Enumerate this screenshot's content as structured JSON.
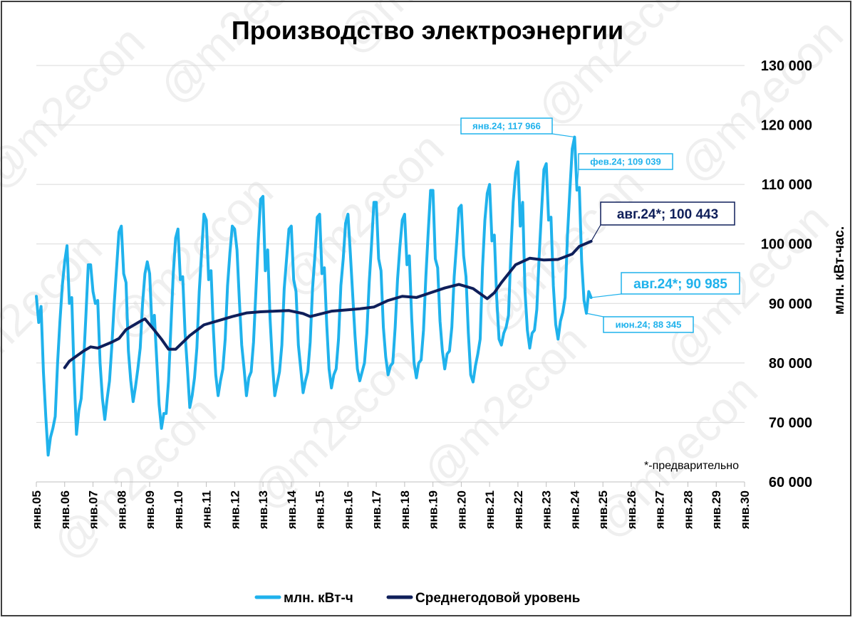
{
  "chart_data": {
    "type": "line",
    "title": "Производство электроэнергии",
    "ylabel": "млн. кВт-час.",
    "ylim": [
      60000,
      130000
    ],
    "yticks": [
      "60 000",
      "70 000",
      "80 000",
      "90 000",
      "100 000",
      "110 000",
      "120 000",
      "130 000"
    ],
    "x_tick_labels": [
      "янв.05",
      "янв.06",
      "янв.07",
      "янв.08",
      "янв.09",
      "янв.10",
      "янв.11",
      "янв.12",
      "янв.13",
      "янв.14",
      "янв.15",
      "янв.16",
      "янв.17",
      "янв.18",
      "янв.19",
      "янв.20",
      "янв.21",
      "янв.22",
      "янв.23",
      "янв.24",
      "янв.25",
      "янв.26",
      "янв.27",
      "янв.28",
      "янв.29",
      "янв.30"
    ],
    "x_start": "2005-01",
    "x_end": "2030-01",
    "grid": "horizontal",
    "legend_position": "bottom",
    "series": [
      {
        "name": "млн. кВт-ч",
        "color": "#1fb2ec",
        "start": "2005-01",
        "annual": {
          "2005": [
            91200,
            86800,
            89500,
            78500,
            71000,
            64500,
            67500,
            69000,
            71000,
            80000,
            87000,
            93000
          ],
          "2006": [
            97000,
            99700,
            90000,
            91000,
            78000,
            68000,
            72000,
            74000,
            80000,
            88000,
            96500,
            96500
          ],
          "2007": [
            92000,
            90000,
            90500,
            80000,
            74000,
            70500,
            74000,
            77000,
            83000,
            90000,
            96000,
            102000
          ],
          "2008": [
            103000,
            95000,
            93500,
            82000,
            77000,
            73500,
            76000,
            79000,
            82500,
            90000,
            95000,
            97000
          ],
          "2009": [
            95000,
            86000,
            88000,
            80500,
            73000,
            69000,
            71500,
            71500,
            77000,
            86000,
            95000,
            101000
          ],
          "2010": [
            102500,
            94000,
            94500,
            85000,
            79000,
            72500,
            74500,
            77500,
            82500,
            92000,
            98500,
            105000
          ],
          "2011": [
            104000,
            94000,
            95500,
            85500,
            78000,
            74500,
            77000,
            79000,
            84000,
            93000,
            98500,
            103000
          ],
          "2012": [
            102500,
            99000,
            90500,
            83000,
            79000,
            74500,
            77500,
            78500,
            83500,
            92000,
            100500,
            107500
          ],
          "2013": [
            108000,
            95500,
            99000,
            87500,
            80000,
            74500,
            76500,
            78500,
            83000,
            92500,
            97500,
            102500
          ],
          "2014": [
            103000,
            94000,
            92000,
            83000,
            79000,
            75000,
            77000,
            78500,
            83500,
            92500,
            98000,
            104500
          ],
          "2015": [
            105000,
            95000,
            96000,
            86500,
            79000,
            75800,
            78000,
            79000,
            84000,
            93000,
            97500,
            103500
          ],
          "2016": [
            105000,
            98500,
            91500,
            84500,
            79000,
            77000,
            78500,
            80000,
            85000,
            93500,
            100000,
            107000
          ],
          "2017": [
            107000,
            97500,
            95500,
            86000,
            81000,
            78000,
            79500,
            80000,
            86000,
            94000,
            99500,
            104000
          ],
          "2018": [
            105000,
            96500,
            98000,
            87500,
            80000,
            77500,
            80000,
            80500,
            85500,
            94500,
            102000,
            109000
          ],
          "2019": [
            109000,
            97500,
            96000,
            87000,
            82000,
            79000,
            81500,
            82000,
            86000,
            94500,
            100000,
            106000
          ],
          "2020": [
            106500,
            98000,
            94500,
            85000,
            78000,
            76800,
            79500,
            81500,
            84000,
            96000,
            104000,
            108500
          ],
          "2021": [
            110000,
            100500,
            101500,
            91000,
            84000,
            83000,
            85000,
            86000,
            88000,
            98500,
            107000,
            112000
          ],
          "2022": [
            113800,
            103000,
            107000,
            92000,
            85500,
            82500,
            85000,
            85500,
            89000,
            98000,
            105500,
            112500
          ],
          "2023": [
            113500,
            104000,
            104500,
            93000,
            86500,
            84000,
            87000,
            88500,
            91000,
            101500,
            109000,
            116000
          ],
          "2024": [
            117966,
            109039,
            109500,
            97000,
            90500,
            88345,
            92000,
            90985
          ]
        }
      },
      {
        "name": "Среднегодовой уровень",
        "color": "#0f1f5a",
        "monthly": [
          [
            "2006-01",
            79200
          ],
          [
            "2006-03",
            80300
          ],
          [
            "2006-09",
            82000
          ],
          [
            "2006-12",
            82700
          ],
          [
            "2007-03",
            82500
          ],
          [
            "2007-09",
            83500
          ],
          [
            "2007-12",
            84100
          ],
          [
            "2008-03",
            85600
          ],
          [
            "2008-09",
            87000
          ],
          [
            "2008-11",
            87400
          ],
          [
            "2009-03",
            85500
          ],
          [
            "2009-06",
            84000
          ],
          [
            "2009-09",
            82300
          ],
          [
            "2009-12",
            82300
          ],
          [
            "2010-06",
            84600
          ],
          [
            "2010-12",
            86400
          ],
          [
            "2011-06",
            87100
          ],
          [
            "2011-12",
            87800
          ],
          [
            "2012-06",
            88400
          ],
          [
            "2012-12",
            88600
          ],
          [
            "2013-06",
            88700
          ],
          [
            "2013-12",
            88800
          ],
          [
            "2014-06",
            88300
          ],
          [
            "2014-09",
            87800
          ],
          [
            "2014-12",
            88100
          ],
          [
            "2015-06",
            88700
          ],
          [
            "2015-12",
            88900
          ],
          [
            "2016-06",
            89100
          ],
          [
            "2016-12",
            89400
          ],
          [
            "2017-06",
            90500
          ],
          [
            "2017-12",
            91200
          ],
          [
            "2018-06",
            91000
          ],
          [
            "2018-12",
            91800
          ],
          [
            "2019-06",
            92600
          ],
          [
            "2019-12",
            93200
          ],
          [
            "2020-06",
            92500
          ],
          [
            "2020-12",
            90800
          ],
          [
            "2021-03",
            91800
          ],
          [
            "2021-06",
            93500
          ],
          [
            "2021-12",
            96500
          ],
          [
            "2022-06",
            97600
          ],
          [
            "2022-12",
            97300
          ],
          [
            "2023-06",
            97400
          ],
          [
            "2023-12",
            98300
          ],
          [
            "2024-03",
            99600
          ],
          [
            "2024-08",
            100443
          ]
        ]
      }
    ],
    "annotations": [
      {
        "text": "янв.24; 117 966",
        "x": "2024-01",
        "y": 117966,
        "color": "#1fb2ec"
      },
      {
        "text": "фев.24; 109 039",
        "x": "2024-02",
        "y": 109039,
        "color": "#1fb2ec"
      },
      {
        "text": "авг.24*;  100 443",
        "x": "2024-08",
        "y": 100443,
        "color": "#0f1f5a"
      },
      {
        "text": "авг.24*; 90 985",
        "x": "2024-08",
        "y": 90985,
        "color": "#1fb2ec"
      },
      {
        "text": "июн.24; 88 345",
        "x": "2024-06",
        "y": 88345,
        "color": "#1fb2ec"
      }
    ],
    "note": "*-предварительно"
  },
  "watermark": "@m2econ"
}
